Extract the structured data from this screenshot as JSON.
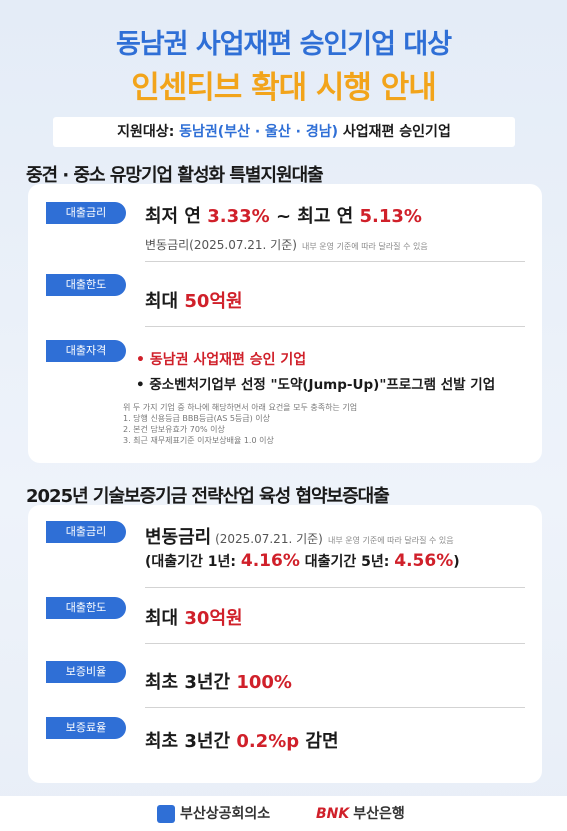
{
  "header": {
    "title_line1": "동남권 사업재편 승인기업 대상",
    "title_line2": "인센티브 확대 시행 안내",
    "target_label": "지원대상: ",
    "target_value": "동남권(부산 · 울산 · 경남)",
    "target_suffix": " 사업재편 승인기업"
  },
  "section1": {
    "heading": "중견 · 중소 유망기업 활성화 특별지원대출",
    "rate": {
      "tag": "대출금리",
      "min_label": "최저 연 ",
      "min_value": "3.33%",
      "sep": " ~ 최고 연 ",
      "max_value": "5.13%",
      "sub": "변동금리(2025.07.21. 기준)",
      "tiny": "내부 운영 기준에 따라 달라질 수 있음"
    },
    "limit": {
      "tag": "대출한도",
      "label": "최대 ",
      "value": "50억원"
    },
    "eligibility": {
      "tag": "대출자격",
      "item1": "• 동남권 사업재편 승인 기업",
      "item2": "• 중소벤처기업부 선정 \"도약(Jump-Up)\"프로그램 선발 기업",
      "note0": "위 두 가지 기업 중 하나에 해당하면서 아래 요건을 모두 충족하는 기업",
      "note1": "1. 당행 신용등급 BBB등급(AS 5등급) 이상",
      "note2": "2. 본건 담보유효가 70% 이상",
      "note3": "3. 최근 재무제표기준 이자보상배율 1.0 이상"
    }
  },
  "section2": {
    "heading": "2025년 기술보증기금 전략산업 육성 협약보증대출",
    "rate": {
      "tag": "대출금리",
      "label": "변동금리",
      "date": " (2025.07.21. 기준)",
      "tiny": "내부 운영 기준에 따라 달라질 수 있음",
      "term1_label": "(대출기간 1년: ",
      "term1_value": "4.16%",
      "term5_label": " 대출기간 5년: ",
      "term5_value": "4.56%",
      "close": ")"
    },
    "limit": {
      "tag": "대출한도",
      "label": "최대 ",
      "value": "30억원"
    },
    "ratio": {
      "tag": "보증비율",
      "label": "최초 3년간 ",
      "value": "100%"
    },
    "fee": {
      "tag": "보증료율",
      "label": "최초 3년간 ",
      "value": "0.2%p",
      "suffix": " 감면"
    }
  },
  "footer": {
    "org1": "부산상공회의소",
    "org2_brand": "BNK",
    "org2": "부산은행"
  }
}
